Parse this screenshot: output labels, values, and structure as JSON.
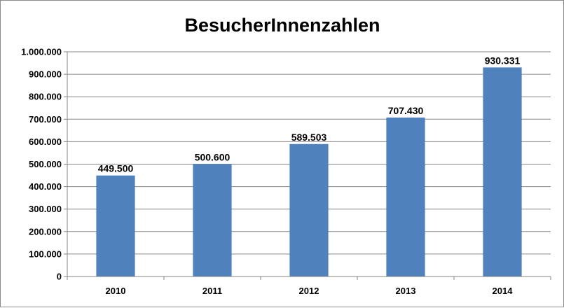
{
  "chart_data": {
    "type": "bar",
    "title": "BesucherInnenzahlen",
    "xlabel": "",
    "ylabel": "",
    "categories": [
      "2010",
      "2011",
      "2012",
      "2013",
      "2014"
    ],
    "values": [
      449500,
      500600,
      589503,
      707430,
      930331
    ],
    "data_labels": [
      "449.500",
      "500.600",
      "589.503",
      "707.430",
      "930.331"
    ],
    "ylim": [
      0,
      1000000
    ],
    "yticks": [
      0,
      100000,
      200000,
      300000,
      400000,
      500000,
      600000,
      700000,
      800000,
      900000,
      1000000
    ],
    "ytick_labels": [
      "0",
      "100.000",
      "200.000",
      "300.000",
      "400.000",
      "500.000",
      "600.000",
      "700.000",
      "800.000",
      "900.000",
      "1.000.000"
    ],
    "grid": "horizontal",
    "legend": "none",
    "colors": {
      "bar": "#4f81bd",
      "grid": "#868686",
      "axis": "#868686"
    }
  }
}
